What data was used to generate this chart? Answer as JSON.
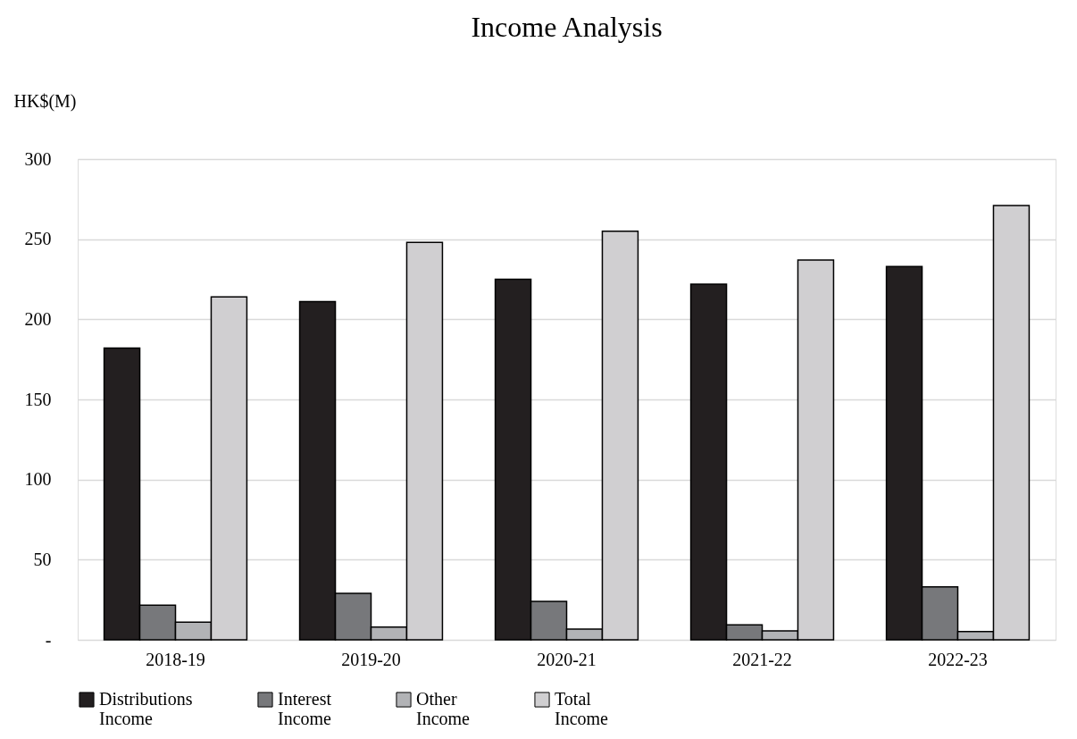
{
  "chart_data": {
    "type": "bar",
    "title": "Income Analysis",
    "ylabel": "HK$(M)",
    "categories": [
      "2018-19",
      "2019-20",
      "2020-21",
      "2021-22",
      "2022-23"
    ],
    "series": [
      {
        "name": "Distributions Income",
        "color": "#231f20",
        "values": [
          182,
          211,
          225,
          222,
          233
        ]
      },
      {
        "name": "Interest Income",
        "color": "#77787b",
        "values": [
          21.6,
          29,
          24,
          9.3,
          33
        ]
      },
      {
        "name": "Other Income",
        "color": "#b2b3b6",
        "values": [
          11,
          8,
          6.7,
          5.6,
          5.2
        ]
      },
      {
        "name": "Total Income",
        "color": "#d0cfd1",
        "values": [
          214,
          248,
          255,
          237,
          271
        ]
      }
    ],
    "ylim": [
      0,
      300
    ],
    "yticks": [
      {
        "value": 0,
        "label": "-"
      },
      50,
      100,
      150,
      200,
      250,
      300
    ],
    "grid": "y",
    "legend": "bottom"
  }
}
